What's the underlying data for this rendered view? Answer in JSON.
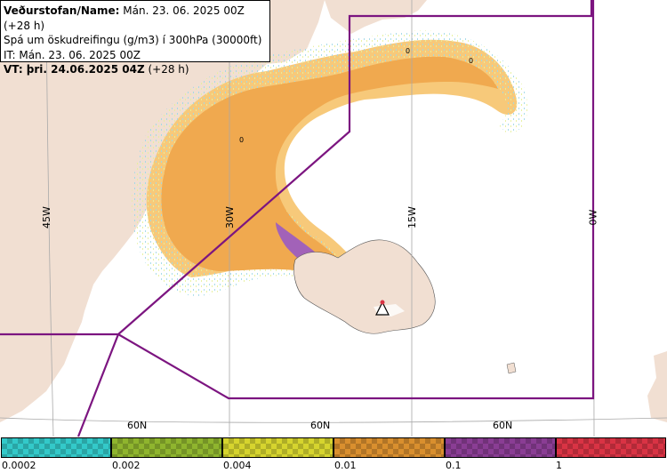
{
  "info": {
    "line1_label": "Veðurstofan/Name:",
    "line1_value": "Mán. 23. 06. 2025 00Z (+28 h)",
    "line2": "Spá um öskudreifingu (g/m3) í 300hPa (30000ft)",
    "line3": "IT: Mán. 23. 06. 2025 00Z",
    "line4_label": "VT: þri. 24.06.2025 04Z",
    "line4_value": "(+28 h)"
  },
  "graticule": {
    "lon_labels": [
      "45W",
      "30W",
      "15W",
      "0W"
    ],
    "lat_labels": [
      "60N",
      "60N",
      "60N"
    ]
  },
  "contour_labels": [
    "0",
    "0",
    "0"
  ],
  "legend": {
    "ticks": [
      "0.0002",
      "0.002",
      "0.004",
      "0.01",
      "0.1",
      "1"
    ],
    "colors": [
      "#33c9c9",
      "#8fb52e",
      "#d6d42e",
      "#d98f2e",
      "#8a3d94",
      "#d93344"
    ]
  },
  "colors": {
    "land": "#f1dfd2",
    "ash_light": "#f7c97a",
    "ash_medium": "#f0a94f",
    "ash_high": "#a262b8",
    "boundary": "#7c1580",
    "graticule": "#a9a9a9"
  }
}
